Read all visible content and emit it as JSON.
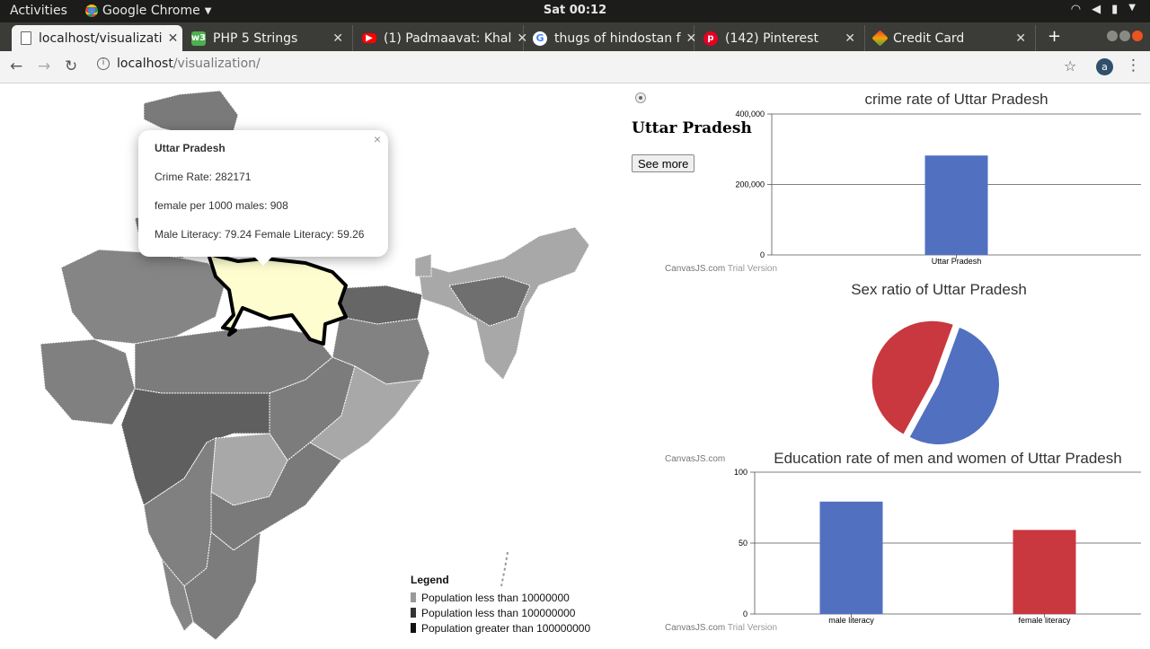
{
  "topbar": {
    "activities": "Activities",
    "app": "Google Chrome",
    "clock": "Sat 00:12"
  },
  "tabs": [
    {
      "title": "localhost/visualizati",
      "active": true,
      "icon": "page-icon",
      "color": "#666666"
    },
    {
      "title": "PHP 5 Strings",
      "active": false,
      "icon": "w3schools-icon",
      "color": "#4caf50"
    },
    {
      "title": "(1) Padmaavat: Khal",
      "active": false,
      "icon": "youtube-icon",
      "color": "#ff0000"
    },
    {
      "title": "thugs of hindostan f",
      "active": false,
      "icon": "google-icon",
      "color": "#ffffff"
    },
    {
      "title": "(142) Pinterest",
      "active": false,
      "icon": "pinterest-icon",
      "color": "#e60023"
    },
    {
      "title": "Credit Card",
      "active": false,
      "icon": "credit-card-icon",
      "color": "#f4a300"
    }
  ],
  "toolbar": {
    "url_host": "localhost",
    "url_path": "/visualization/",
    "avatar_letter": "a"
  },
  "popup": {
    "title": "Uttar Pradesh",
    "crime": "Crime Rate: 282171",
    "sex_ratio": "female per 1000 males: 908",
    "literacy": "Male Literacy: 79.24 Female Literacy: 59.26"
  },
  "legend": {
    "title": "Legend",
    "items": [
      {
        "label": "Population less than 10000000",
        "color": "#9a9a9a"
      },
      {
        "label": "Population less than 100000000",
        "color": "#333333"
      },
      {
        "label": "Population greater than 100000000",
        "color": "#111111"
      }
    ]
  },
  "side": {
    "state": "Uttar Pradesh",
    "see_more": "See more"
  },
  "chart_data": [
    {
      "type": "bar",
      "title": "crime rate of Uttar Pradesh",
      "categories": [
        "Uttar Pradesh"
      ],
      "values": [
        282171
      ],
      "ylim": [
        0,
        400000
      ],
      "yticks": [
        "0",
        "200,000",
        "400,000"
      ],
      "grid": true,
      "colors": [
        "#5270c0"
      ],
      "credit": "CanvasJS.com",
      "credit_suffix": "Trial Version"
    },
    {
      "type": "pie",
      "title": "Sex ratio of Uttar Pradesh",
      "values": [
        1000,
        908
      ],
      "colors": [
        "#5270c0",
        "#c9383f"
      ],
      "exploded_slice": 1,
      "credit": "CanvasJS.com"
    },
    {
      "type": "bar",
      "title": "Education rate of men and women of Uttar Pradesh",
      "categories": [
        "male literacy",
        "female literacy"
      ],
      "values": [
        79.24,
        59.26
      ],
      "ylim": [
        0,
        100
      ],
      "yticks": [
        "0",
        "50",
        "100"
      ],
      "grid": true,
      "colors": [
        "#5270c0",
        "#c9383f"
      ],
      "credit": "CanvasJS.com",
      "credit_suffix": "Trial Version"
    }
  ]
}
